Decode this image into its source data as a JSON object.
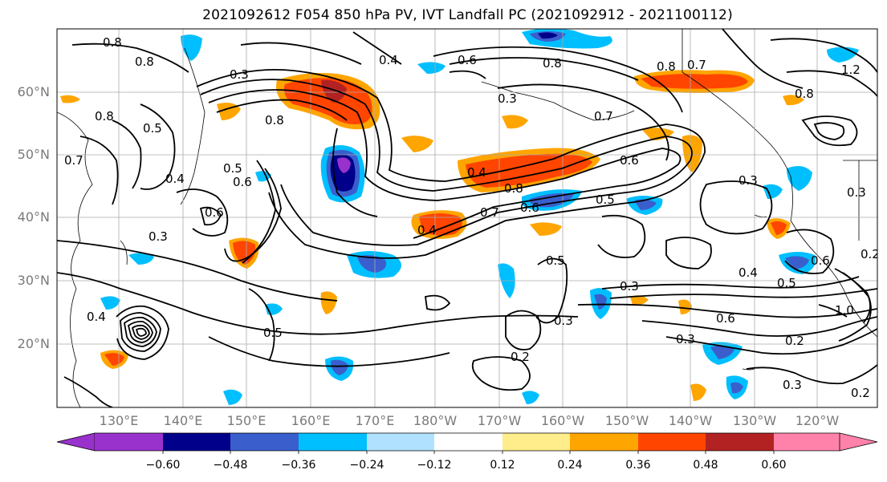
{
  "title": "2021092612 F054 850 hPa PV, IVT Landfall PC (2021092912 - 2021100112)",
  "map": {
    "lat_labels": [
      "60°N",
      "50°N",
      "40°N",
      "30°N",
      "20°N"
    ],
    "lon_labels": [
      "130°E",
      "140°E",
      "150°E",
      "160°E",
      "170°E",
      "180°W",
      "170°W",
      "160°W",
      "150°W",
      "140°W",
      "130°W",
      "120°W"
    ],
    "contour_labels": [
      "0.8",
      "0.8",
      "0.3",
      "0.4",
      "0.6",
      "0.3",
      "0.8",
      "0.7",
      "0.8",
      "0.7",
      "1.2",
      "0.8",
      "0.7",
      "0.5",
      "0.8",
      "0.8",
      "0.4",
      "0.5",
      "0.6",
      "0.6",
      "0.3",
      "0.4",
      "0.8",
      "0.7",
      "0.6",
      "0.6",
      "0.5",
      "0.4",
      "0.5",
      "0.3",
      "0.3",
      "0.4",
      "0.5",
      "0.6",
      "0.3",
      "0.3",
      "0.6",
      "1.0",
      "0.2",
      "0.2",
      "0.3",
      "0.2",
      "0.5",
      "0.2",
      "0.3",
      "0.4"
    ]
  },
  "colorbar": {
    "colors": [
      "#9932cc",
      "#00008b",
      "#3a5fcd",
      "#00bfff",
      "#b0e2ff",
      "#ffffff",
      "#ffec8b",
      "#ffa500",
      "#ff4500",
      "#b22222",
      "#ff82ab"
    ],
    "tick_labels": [
      "−0.60",
      "−0.48",
      "−0.36",
      "−0.24",
      "−0.12",
      "0.12",
      "0.24",
      "0.36",
      "0.48",
      "0.60"
    ]
  }
}
